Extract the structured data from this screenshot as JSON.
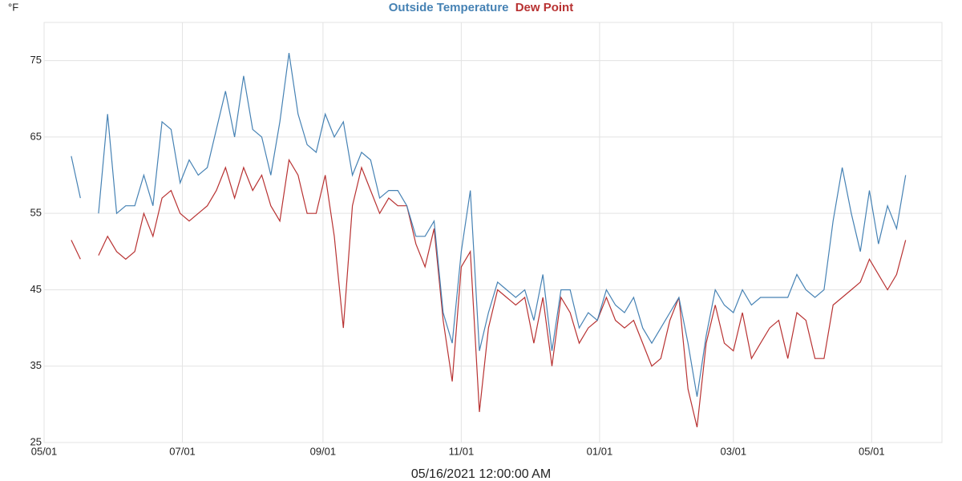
{
  "chart_data": {
    "type": "line",
    "ylabel": "°F",
    "xlabel": "05/16/2021 12:00:00 AM",
    "x": [
      12,
      16,
      20,
      24,
      28,
      32,
      36,
      40,
      44,
      48,
      52,
      56,
      60,
      64,
      68,
      72,
      76,
      80,
      84,
      88,
      92,
      96,
      100,
      104,
      108,
      112,
      116,
      120,
      124,
      128,
      132,
      136,
      140,
      144,
      148,
      152,
      156,
      160,
      164,
      168,
      172,
      176,
      180,
      184,
      188,
      192,
      196,
      200,
      204,
      208,
      212,
      216,
      220,
      224,
      228,
      232,
      236,
      240,
      244,
      248,
      252,
      256,
      260,
      264,
      268,
      272,
      276,
      280,
      284,
      288,
      292,
      296,
      300,
      304,
      308,
      312,
      316,
      320,
      324,
      328,
      332,
      336,
      340,
      344,
      348,
      352,
      356,
      360,
      364,
      368,
      372,
      376,
      380
    ],
    "series": [
      {
        "name": "Outside Temperature",
        "color": "#4682b4",
        "values": [
          62.5,
          57,
          null,
          55,
          68,
          55,
          56,
          56,
          60,
          56,
          67,
          66,
          59,
          62,
          60,
          61,
          66,
          71,
          65,
          73,
          66,
          65,
          60,
          67,
          76,
          68,
          64,
          63,
          68,
          65,
          67,
          60,
          63,
          62,
          57,
          58,
          58,
          56,
          52,
          52,
          54,
          42,
          38,
          50,
          58,
          37,
          42,
          46,
          45,
          44,
          45,
          41,
          47,
          37,
          45,
          45,
          40,
          42,
          41,
          45,
          43,
          42,
          44,
          40,
          38,
          40,
          42,
          44,
          38,
          31,
          39,
          45,
          43,
          42,
          45,
          43,
          44,
          44,
          44,
          44,
          47,
          45,
          44,
          45,
          54,
          61,
          55,
          50,
          58,
          51,
          56,
          53,
          60
        ]
      },
      {
        "name": "Dew Point",
        "color": "#b83232",
        "values": [
          51.5,
          49,
          null,
          49.5,
          52,
          50,
          49,
          50,
          55,
          52,
          57,
          58,
          55,
          54,
          55,
          56,
          58,
          61,
          57,
          61,
          58,
          60,
          56,
          54,
          62,
          60,
          55,
          55,
          60,
          52,
          40,
          56,
          61,
          58,
          55,
          57,
          56,
          56,
          51,
          48,
          53,
          41,
          33,
          48,
          50,
          29,
          40,
          45,
          44,
          43,
          44,
          38,
          44,
          35,
          44,
          42,
          38,
          40,
          41,
          44,
          41,
          40,
          41,
          38,
          35,
          36,
          41,
          44,
          32,
          27,
          38,
          43,
          38,
          37,
          42,
          36,
          38,
          40,
          41,
          36,
          42,
          41,
          36,
          36,
          43,
          44,
          45,
          46,
          49,
          47,
          45,
          47,
          51.5
        ]
      }
    ],
    "xlim": [
      0,
      396
    ],
    "xticks": [
      {
        "value": 0,
        "label": "05/01"
      },
      {
        "value": 61,
        "label": "07/01"
      },
      {
        "value": 123,
        "label": "09/01"
      },
      {
        "value": 184,
        "label": "11/01"
      },
      {
        "value": 245,
        "label": "01/01"
      },
      {
        "value": 304,
        "label": "03/01"
      },
      {
        "value": 365,
        "label": "05/01"
      }
    ],
    "ylim": [
      25,
      80
    ],
    "yticks": [
      25,
      35,
      45,
      55,
      65,
      75
    ],
    "grid": true
  }
}
